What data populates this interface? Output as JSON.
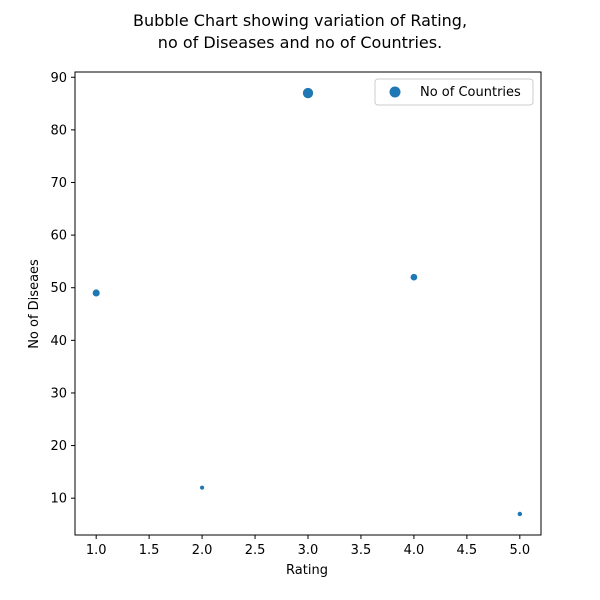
{
  "chart_data": {
    "type": "scatter",
    "title_lines": [
      "Bubble Chart showing variation of Rating,",
      "no of Diseases and no of Countries."
    ],
    "xlabel": "Rating",
    "ylabel": "No of Diseaes",
    "xlim": [
      0.8,
      5.2
    ],
    "ylim": [
      3.0,
      91.0
    ],
    "xticks": [
      1.0,
      1.5,
      2.0,
      2.5,
      3.0,
      3.5,
      4.0,
      4.5,
      5.0
    ],
    "xtick_labels": [
      "1.0",
      "1.5",
      "2.0",
      "2.5",
      "3.0",
      "3.5",
      "4.0",
      "4.5",
      "5.0"
    ],
    "yticks": [
      10,
      20,
      30,
      40,
      50,
      60,
      70,
      80,
      90
    ],
    "ytick_labels": [
      "10",
      "20",
      "30",
      "40",
      "50",
      "60",
      "70",
      "80",
      "90"
    ],
    "series": [
      {
        "name": "No of Countries",
        "color": "#1f77b4",
        "points": [
          {
            "x": 1.0,
            "y": 49,
            "size": 45
          },
          {
            "x": 2.0,
            "y": 12,
            "size": 15
          },
          {
            "x": 3.0,
            "y": 87,
            "size": 95
          },
          {
            "x": 4.0,
            "y": 52,
            "size": 40
          },
          {
            "x": 5.0,
            "y": 7,
            "size": 18
          }
        ]
      }
    ],
    "grid": false,
    "legend_position": "upper right"
  }
}
